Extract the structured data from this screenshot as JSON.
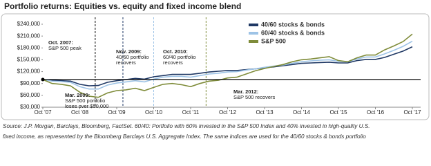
{
  "chart_data": {
    "type": "line",
    "title": "Portfolio returns: Equities vs. equity and fixed income blend",
    "categories": [
      "Oct '07",
      null,
      null,
      null,
      "Oct '08",
      null,
      null,
      null,
      "Oct '09",
      null,
      null,
      null,
      "Oct '10",
      null,
      null,
      null,
      "Oct '11",
      null,
      null,
      null,
      "Oct '12",
      null,
      null,
      null,
      "Oct '13",
      null,
      null,
      null,
      "Oct '14",
      null,
      null,
      null,
      "Oct '15",
      null,
      null,
      null,
      "Oct '16",
      null,
      null,
      null,
      "Oct '17"
    ],
    "series": [
      {
        "name": "40/60 stocks & bonds",
        "color": "#1f3864",
        "values": [
          100000,
          98000,
          97000,
          96000,
          88000,
          84000,
          85000,
          93000,
          97000,
          100000,
          103000,
          101000,
          107000,
          110000,
          113000,
          113000,
          113000,
          116000,
          119000,
          121000,
          123000,
          123000,
          125000,
          127000,
          130000,
          132000,
          135000,
          138000,
          141000,
          142000,
          143000,
          144000,
          142000,
          142000,
          148000,
          151000,
          151000,
          156000,
          164000,
          172000,
          183000
        ]
      },
      {
        "name": "60/40 stocks & bonds",
        "color": "#9dc3e6",
        "values": [
          100000,
          96000,
          95000,
          93000,
          82000,
          76000,
          76000,
          86000,
          91000,
          94000,
          97000,
          94000,
          101000,
          106000,
          108000,
          108000,
          106000,
          110000,
          114000,
          116000,
          119000,
          120000,
          124000,
          127000,
          131000,
          134000,
          137000,
          141000,
          145000,
          147000,
          149000,
          150000,
          146000,
          145000,
          152000,
          157000,
          157000,
          165000,
          174000,
          184000,
          197000
        ]
      },
      {
        "name": "S&P 500",
        "color": "#7f8c3a",
        "values": [
          100000,
          90000,
          88000,
          84000,
          68000,
          58000,
          55000,
          66000,
          72000,
          74000,
          78000,
          72000,
          80000,
          88000,
          90000,
          87000,
          82000,
          90000,
          96000,
          98000,
          104000,
          106000,
          114000,
          122000,
          128000,
          133000,
          138000,
          145000,
          150000,
          152000,
          155000,
          158000,
          148000,
          145000,
          155000,
          162000,
          162000,
          175000,
          185000,
          196000,
          215000
        ]
      }
    ],
    "ylim": [
      30000,
      240000
    ],
    "yticks": [
      {
        "value": 30000,
        "label": "$30,000"
      },
      {
        "value": 60000,
        "label": "$60,000"
      },
      {
        "value": 90000,
        "label": "$90,000"
      },
      {
        "value": 120000,
        "label": "$120,000"
      },
      {
        "value": 150000,
        "label": "$150,000"
      },
      {
        "value": 180000,
        "label": "$180,000"
      },
      {
        "value": 210000,
        "label": "$210,000"
      },
      {
        "value": 240000,
        "label": "$240,000"
      }
    ],
    "hline": 100000,
    "annotations": [
      {
        "lines": [
          "Oct. 2007:",
          "S&P 500 peak"
        ]
      },
      {
        "lines": [
          "Mar. 2009:",
          "S&P 500 portfolio",
          "loses over $50,000"
        ]
      },
      {
        "lines": [
          "Nov. 2009:",
          "40/60 portfolio",
          "recovers"
        ]
      },
      {
        "lines": [
          "Oct. 2010:",
          "60/40 portfolio",
          "recovers"
        ]
      },
      {
        "lines": [
          "Mar. 2012:",
          "S&P 500 recovers"
        ]
      }
    ],
    "footnote": [
      "Source: J.P. Morgan, Barclays, Bloomberg, FactSet. 60/40: Portfolio with 60% invested in the S&P 500 Index and 40% invested in high-quality U.S.",
      "fixed income, as represented by the Bloomberg Barclays U.S. Aggregate Index. The same indices are used for the 40/60 stocks & bonds portfolio"
    ]
  }
}
